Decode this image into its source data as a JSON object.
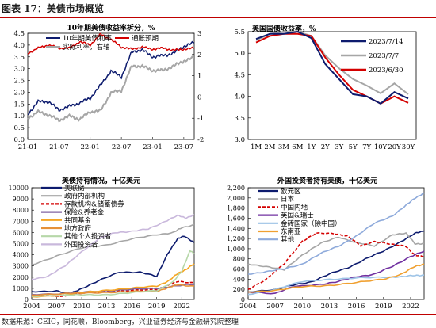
{
  "header": {
    "title": "图表 17：美债市场概览"
  },
  "footer": {
    "source": "数据来源：CEIC，同花顺，Bloomberg，兴业证券经济与金融研究院整理"
  },
  "colors": {
    "navy": "#0d1b6e",
    "red": "#d40000",
    "gray": "#a6a6a6",
    "brand": "#c00000"
  },
  "chart_data": [
    {
      "type": "line",
      "title": "10年期美债收益率拆分，%",
      "xlabel": "",
      "ylabel": "",
      "x": [
        "21-01",
        "21-03",
        "21-05",
        "21-07",
        "21-09",
        "21-11",
        "22-01",
        "22-03",
        "22-05",
        "22-07",
        "22-09",
        "22-11",
        "23-01",
        "23-03",
        "23-05",
        "23-07",
        "23-08"
      ],
      "x_ticks": [
        "21-01",
        "21-07",
        "22-01",
        "22-07",
        "23-01",
        "23-07"
      ],
      "ylim_left": [
        0,
        4.5
      ],
      "yticks_left": [
        0,
        0.5,
        1,
        1.5,
        2,
        2.5,
        3,
        3.5,
        4,
        4.5
      ],
      "ylim_right": [
        -2,
        3
      ],
      "yticks_right": [
        -2,
        -1,
        0,
        1,
        2,
        3
      ],
      "legend_position": "top",
      "series": [
        {
          "name": "10年期美债利率",
          "axis": "left",
          "color": "#0d1b6e",
          "values": [
            1.07,
            1.6,
            1.6,
            1.25,
            1.4,
            1.55,
            1.75,
            2.3,
            2.9,
            2.65,
            3.7,
            3.8,
            3.5,
            3.55,
            3.65,
            3.95,
            4.1
          ]
        },
        {
          "name": "通胀预期",
          "axis": "right",
          "color": "#d40000",
          "values": [
            2.05,
            2.3,
            2.45,
            2.3,
            2.3,
            2.6,
            2.45,
            2.95,
            2.7,
            2.35,
            2.25,
            2.35,
            2.25,
            2.3,
            2.2,
            2.25,
            2.3
          ]
        },
        {
          "name": "实际利率，右轴",
          "axis": "right",
          "color": "#a6a6a6",
          "values": [
            -1.0,
            -0.7,
            -0.85,
            -1.1,
            -0.9,
            -1.05,
            -0.7,
            -0.65,
            0.2,
            0.3,
            1.45,
            1.45,
            1.25,
            1.25,
            1.45,
            1.7,
            1.85
          ]
        }
      ]
    },
    {
      "type": "line",
      "title": "美国国债收益率，%",
      "categories": [
        "1M",
        "2M",
        "3M",
        "6M",
        "1Y",
        "2Y",
        "3Y",
        "5Y",
        "7Y",
        "10Y",
        "20Y",
        "30Y"
      ],
      "ylim": [
        3.0,
        5.5
      ],
      "yticks": [
        3.0,
        3.5,
        4.0,
        4.5,
        5.0,
        5.5
      ],
      "legend_position": "right",
      "series": [
        {
          "name": "2023/7/14",
          "color": "#0d1b6e",
          "values": [
            5.33,
            5.45,
            5.45,
            5.5,
            5.35,
            4.75,
            4.4,
            4.05,
            4.0,
            3.83,
            4.1,
            3.95
          ]
        },
        {
          "name": "2023/7/7",
          "color": "#a6a6a6",
          "values": [
            5.3,
            5.45,
            5.5,
            5.5,
            5.4,
            4.95,
            4.65,
            4.4,
            4.25,
            4.07,
            4.3,
            4.05
          ]
        },
        {
          "name": "2023/6/30",
          "color": "#d40000",
          "values": [
            5.25,
            5.4,
            5.45,
            5.45,
            5.4,
            4.9,
            4.5,
            4.15,
            4.0,
            3.83,
            4.0,
            3.85
          ]
        }
      ]
    },
    {
      "type": "line",
      "title": "美债持有情况，十亿美元",
      "x_start": 2004,
      "x_end": 2023.5,
      "x_ticks": [
        2004,
        2007,
        2010,
        2013,
        2016,
        2019,
        2022
      ],
      "ylim": [
        0,
        10000
      ],
      "yticks": [
        0,
        1000,
        2000,
        3000,
        4000,
        5000,
        6000,
        7000,
        8000,
        9000,
        10000
      ],
      "legend_position": "top-left",
      "series": [
        {
          "name": "美联储",
          "color": "#0d1b6e",
          "dash": "",
          "points": [
            [
              2004,
              700
            ],
            [
              2007,
              780
            ],
            [
              2008.5,
              480
            ],
            [
              2010,
              1000
            ],
            [
              2012,
              1650
            ],
            [
              2014.5,
              2450
            ],
            [
              2017,
              2450
            ],
            [
              2019,
              2050
            ],
            [
              2020.3,
              4100
            ],
            [
              2021.5,
              5400
            ],
            [
              2022.3,
              5700
            ],
            [
              2023.5,
              5100
            ]
          ]
        },
        {
          "name": "政府内部机构",
          "color": "#a6a6a6",
          "dash": "",
          "points": [
            [
              2004,
              3100
            ],
            [
              2007,
              3900
            ],
            [
              2010,
              4600
            ],
            [
              2013,
              4900
            ],
            [
              2016,
              5400
            ],
            [
              2019,
              5800
            ],
            [
              2021,
              6000
            ],
            [
              2022,
              6400
            ],
            [
              2023.5,
              6700
            ]
          ]
        },
        {
          "name": "存款机构&储蓄债券",
          "color": "#d40000",
          "dash": "4,2",
          "points": [
            [
              2004,
              400
            ],
            [
              2008,
              300
            ],
            [
              2010,
              550
            ],
            [
              2013,
              700
            ],
            [
              2016,
              800
            ],
            [
              2019,
              900
            ],
            [
              2020.5,
              1300
            ],
            [
              2021.5,
              1600
            ],
            [
              2023.5,
              1500
            ]
          ]
        },
        {
          "name": "保险&养老金",
          "color": "#8064a2",
          "dash": "",
          "points": [
            [
              2004,
              450
            ],
            [
              2008,
              550
            ],
            [
              2010,
              650
            ],
            [
              2013,
              800
            ],
            [
              2016,
              900
            ],
            [
              2019,
              1000
            ],
            [
              2021,
              1200
            ],
            [
              2023.5,
              1350
            ]
          ]
        },
        {
          "name": "共同基金",
          "color": "#f5a623",
          "dash": "",
          "points": [
            [
              2004,
              250
            ],
            [
              2008,
              400
            ],
            [
              2010,
              600
            ],
            [
              2013,
              850
            ],
            [
              2016,
              1000
            ],
            [
              2019,
              1200
            ],
            [
              2020.5,
              1700
            ],
            [
              2021.5,
              2300
            ],
            [
              2022.5,
              2700
            ],
            [
              2023.5,
              3200
            ]
          ]
        },
        {
          "name": "地方政府",
          "color": "#e69138",
          "dash": "",
          "points": [
            [
              2004,
              400
            ],
            [
              2008,
              550
            ],
            [
              2010,
              550
            ],
            [
              2013,
              650
            ],
            [
              2016,
              700
            ],
            [
              2019,
              750
            ],
            [
              2020.5,
              1100
            ],
            [
              2021.5,
              1300
            ],
            [
              2023.5,
              1200
            ]
          ]
        },
        {
          "name": "其他个人投资者",
          "color": "#b6d7a8",
          "dash": "",
          "points": [
            [
              2004,
              300
            ],
            [
              2008,
              400
            ],
            [
              2010,
              400
            ],
            [
              2013,
              450
            ],
            [
              2016,
              600
            ],
            [
              2019,
              800
            ],
            [
              2021,
              1600
            ],
            [
              2022,
              2500
            ],
            [
              2023,
              4400
            ],
            [
              2023.5,
              4100
            ]
          ]
        },
        {
          "name": "外国投资者",
          "color": "#c9b8dc",
          "dash": "",
          "points": [
            [
              2004,
              1800
            ],
            [
              2006,
              2100
            ],
            [
              2008,
              3000
            ],
            [
              2010,
              4300
            ],
            [
              2012,
              5400
            ],
            [
              2014,
              6000
            ],
            [
              2016,
              6100
            ],
            [
              2018,
              6300
            ],
            [
              2020,
              7000
            ],
            [
              2021.5,
              7500
            ],
            [
              2022.5,
              7300
            ],
            [
              2023.5,
              7600
            ]
          ]
        }
      ]
    },
    {
      "type": "line",
      "title": "外国投资者持有美债，十亿美元",
      "x_start": 2004,
      "x_end": 2023.5,
      "x_ticks": [
        2004,
        2007,
        2010,
        2013,
        2016,
        2019,
        2022
      ],
      "ylim": [
        0,
        2200
      ],
      "yticks": [
        0,
        200,
        400,
        600,
        800,
        1000,
        1200,
        1400,
        1600,
        1800,
        2000,
        2200
      ],
      "legend_position": "top-left",
      "series": [
        {
          "name": "欧元区",
          "color": "#0d1b6e",
          "dash": "",
          "points": [
            [
              2004,
              150
            ],
            [
              2007,
              200
            ],
            [
              2009,
              280
            ],
            [
              2011,
              350
            ],
            [
              2013,
              500
            ],
            [
              2015,
              620
            ],
            [
              2017,
              800
            ],
            [
              2019,
              950
            ],
            [
              2021,
              1150
            ],
            [
              2022.5,
              1300
            ],
            [
              2023.5,
              1350
            ]
          ]
        },
        {
          "name": "日本",
          "color": "#a6a6a6",
          "dash": "",
          "points": [
            [
              2004,
              700
            ],
            [
              2006,
              650
            ],
            [
              2008,
              580
            ],
            [
              2010,
              880
            ],
            [
              2012,
              1100
            ],
            [
              2014,
              1230
            ],
            [
              2016,
              1120
            ],
            [
              2018,
              1050
            ],
            [
              2020,
              1280
            ],
            [
              2021.5,
              1300
            ],
            [
              2022.5,
              1100
            ],
            [
              2023.5,
              1100
            ]
          ]
        },
        {
          "name": "中国内地",
          "color": "#d40000",
          "dash": "4,2",
          "points": [
            [
              2004,
              200
            ],
            [
              2006,
              400
            ],
            [
              2008,
              700
            ],
            [
              2010,
              1150
            ],
            [
              2011.5,
              1300
            ],
            [
              2013.5,
              1300
            ],
            [
              2015,
              1250
            ],
            [
              2016.5,
              1050
            ],
            [
              2018,
              1150
            ],
            [
              2020,
              1080
            ],
            [
              2021.5,
              1050
            ],
            [
              2022.5,
              870
            ],
            [
              2023.5,
              840
            ]
          ]
        },
        {
          "name": "英国&瑞士",
          "color": "#7030a0",
          "dash": "",
          "points": [
            [
              2004,
              150
            ],
            [
              2007,
              120
            ],
            [
              2009,
              250
            ],
            [
              2012,
              300
            ],
            [
              2014,
              350
            ],
            [
              2016,
              450
            ],
            [
              2018,
              500
            ],
            [
              2020,
              650
            ],
            [
              2022,
              850
            ],
            [
              2023.5,
              950
            ]
          ]
        },
        {
          "name": "金砖国家（除中国）",
          "color": "#9dc3e6",
          "dash": "",
          "points": [
            [
              2004,
              100
            ],
            [
              2007,
              200
            ],
            [
              2010,
              350
            ],
            [
              2013,
              400
            ],
            [
              2016,
              420
            ],
            [
              2019,
              440
            ],
            [
              2021,
              450
            ],
            [
              2022.5,
              470
            ],
            [
              2023.5,
              480
            ]
          ]
        },
        {
          "name": "东南亚",
          "color": "#f0a030",
          "dash": "",
          "points": [
            [
              2004,
              150
            ],
            [
              2007,
              180
            ],
            [
              2010,
              250
            ],
            [
              2013,
              280
            ],
            [
              2016,
              330
            ],
            [
              2019,
              400
            ],
            [
              2021,
              500
            ],
            [
              2022.5,
              650
            ],
            [
              2023.5,
              700
            ]
          ]
        },
        {
          "name": "其他",
          "color": "#8eaadb",
          "dash": "",
          "points": [
            [
              2004,
              500
            ],
            [
              2006,
              550
            ],
            [
              2008,
              600
            ],
            [
              2010,
              700
            ],
            [
              2012,
              900
            ],
            [
              2014,
              1050
            ],
            [
              2016,
              1250
            ],
            [
              2018,
              1500
            ],
            [
              2020,
              1650
            ],
            [
              2021.5,
              1850
            ],
            [
              2022.5,
              2000
            ],
            [
              2023.5,
              2100
            ]
          ]
        }
      ]
    }
  ]
}
